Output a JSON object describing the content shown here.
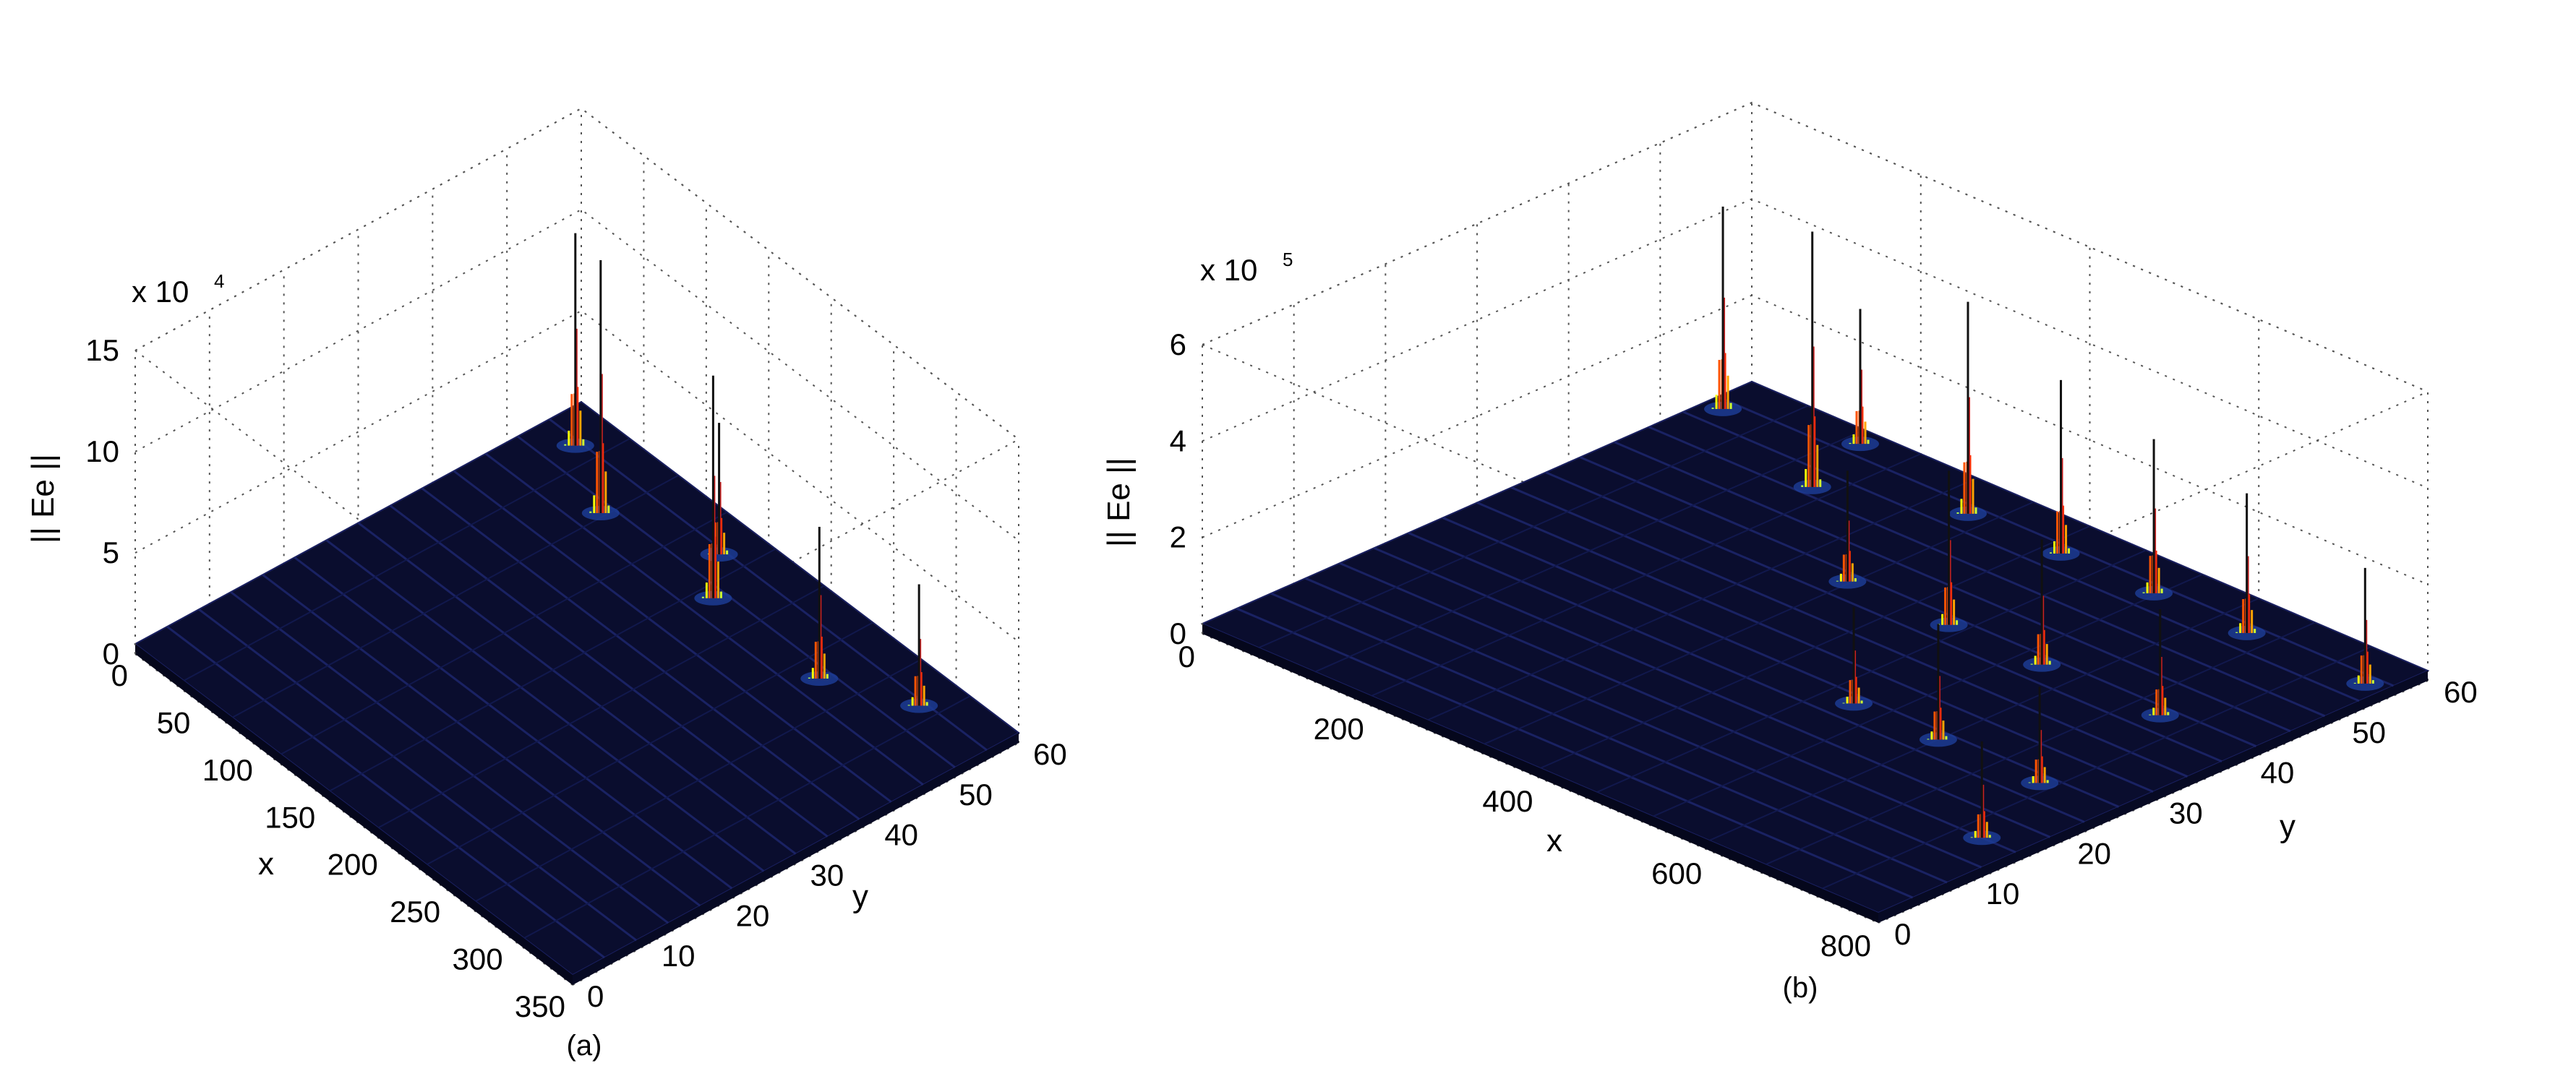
{
  "chart_data": [
    {
      "type": "surface3d",
      "caption": "(a)",
      "zlabel": "|| Ee ||",
      "xlabel": "x",
      "ylabel": "y",
      "zscale_text": "x 10",
      "zscale_exp": "4",
      "x_ticks": [
        "0",
        "50",
        "100",
        "150",
        "200",
        "250",
        "300",
        "350"
      ],
      "y_ticks": [
        "0",
        "10",
        "20",
        "30",
        "40",
        "50",
        "60"
      ],
      "z_ticks": [
        "0",
        "5",
        "10",
        "15"
      ],
      "xlim": [
        0,
        350
      ],
      "ylim": [
        0,
        60
      ],
      "zlim": [
        0,
        15
      ],
      "grid": true,
      "colormap": "jet",
      "peaks": [
        {
          "x": 25,
          "y": 55,
          "z": 10.5
        },
        {
          "x": 75,
          "y": 50,
          "z": 12.5
        },
        {
          "x": 140,
          "y": 55,
          "z": 6.5
        },
        {
          "x": 165,
          "y": 50,
          "z": 11.0
        },
        {
          "x": 250,
          "y": 50,
          "z": 7.5
        },
        {
          "x": 300,
          "y": 55,
          "z": 6.0
        }
      ]
    },
    {
      "type": "surface3d",
      "caption": "(b)",
      "zlabel": "|| Ee ||",
      "xlabel": "x",
      "ylabel": "y",
      "zscale_text": "x 10",
      "zscale_exp": "5",
      "x_ticks": [
        "0",
        "200",
        "400",
        "600",
        "800"
      ],
      "y_ticks": [
        "0",
        "10",
        "20",
        "30",
        "40",
        "50",
        "60"
      ],
      "z_ticks": [
        "0",
        "2",
        "4",
        "6"
      ],
      "xlim": [
        0,
        800
      ],
      "ylim": [
        0,
        60
      ],
      "zlim": [
        0,
        6
      ],
      "grid": true,
      "colormap": "jet",
      "peaks": [
        {
          "x": 20,
          "y": 55,
          "z": 4.2
        },
        {
          "x": 150,
          "y": 58,
          "z": 2.8
        },
        {
          "x": 180,
          "y": 50,
          "z": 5.3
        },
        {
          "x": 310,
          "y": 55,
          "z": 4.4
        },
        {
          "x": 330,
          "y": 40,
          "z": 2.3
        },
        {
          "x": 420,
          "y": 55,
          "z": 3.6
        },
        {
          "x": 450,
          "y": 40,
          "z": 3.2
        },
        {
          "x": 500,
          "y": 25,
          "z": 2.0
        },
        {
          "x": 530,
          "y": 55,
          "z": 3.2
        },
        {
          "x": 560,
          "y": 40,
          "z": 2.6
        },
        {
          "x": 600,
          "y": 25,
          "z": 2.4
        },
        {
          "x": 640,
          "y": 55,
          "z": 2.9
        },
        {
          "x": 700,
          "y": 40,
          "z": 2.2
        },
        {
          "x": 720,
          "y": 25,
          "z": 2.0
        },
        {
          "x": 760,
          "y": 15,
          "z": 2.0
        },
        {
          "x": 780,
          "y": 55,
          "z": 2.4
        }
      ]
    }
  ]
}
